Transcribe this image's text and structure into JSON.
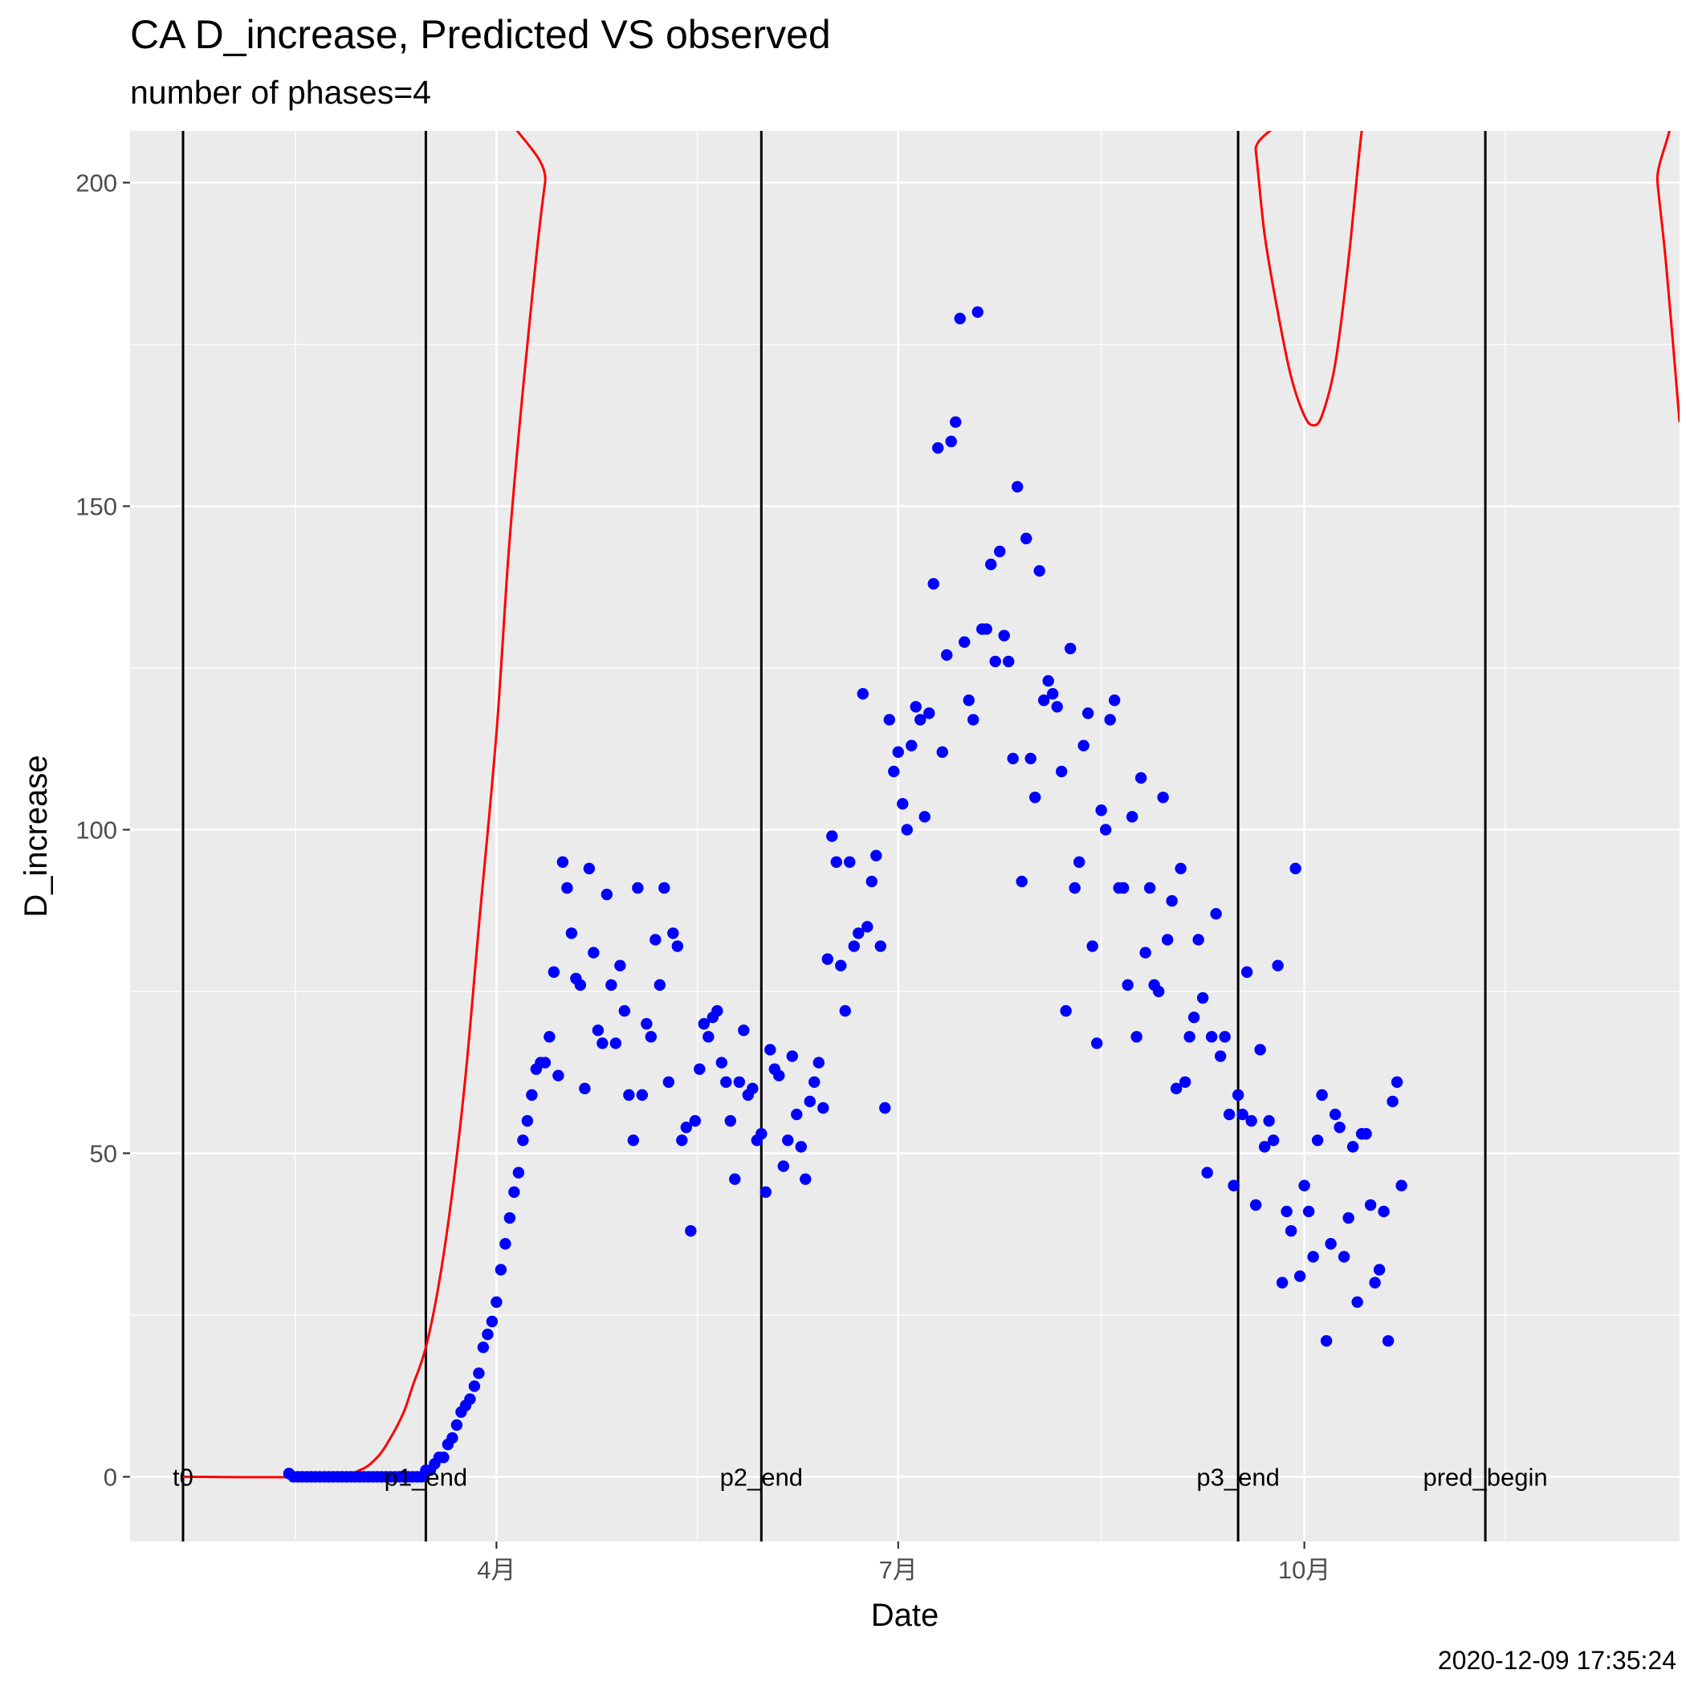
{
  "title": "CA D_increase, Predicted VS observed",
  "subtitle": "number of phases=4",
  "timestamp": "2020-12-09 17:35:24",
  "chart_data": {
    "type": "scatter",
    "xlabel": "Date",
    "ylabel": "D_increase",
    "x_date_range": [
      "2020-01-09",
      "2020-12-25"
    ],
    "ylim": [
      -10,
      208
    ],
    "yticks": [
      0,
      50,
      100,
      150,
      200
    ],
    "xticks": [
      {
        "date": "2020-04-01",
        "label": "4月"
      },
      {
        "date": "2020-07-01",
        "label": "7月"
      },
      {
        "date": "2020-10-01",
        "label": "10月"
      }
    ],
    "grid": true,
    "colors": {
      "panel": "#ebebeb",
      "grid_major": "#ffffff",
      "points": "#0000ff",
      "predicted": "#ff0000",
      "vlines": "#000000"
    },
    "vlines": [
      {
        "date": "2020-01-21",
        "label": "t0"
      },
      {
        "date": "2020-03-16",
        "label": "p1_end"
      },
      {
        "date": "2020-05-31",
        "label": "p2_end"
      },
      {
        "date": "2020-09-16",
        "label": "p3_end"
      },
      {
        "date": "2020-11-11",
        "label": "pred_begin"
      }
    ],
    "observed_series": {
      "start_date": "2020-02-14",
      "values": [
        0.5,
        0,
        0,
        0,
        0,
        0,
        0,
        0,
        0,
        0,
        0,
        0,
        0,
        0,
        0,
        0,
        0,
        0,
        0,
        0,
        0,
        0,
        0,
        0,
        0,
        0,
        0,
        0,
        0,
        0,
        0,
        1,
        1,
        2,
        3,
        3,
        5,
        6,
        8,
        10,
        11,
        12,
        14,
        16,
        20,
        22,
        24,
        27,
        32,
        36,
        40,
        44,
        47,
        52,
        55,
        59,
        63,
        64,
        64,
        68,
        78,
        62,
        95,
        91,
        84,
        77,
        76,
        60,
        94,
        81,
        69,
        67,
        90,
        76,
        67,
        79,
        72,
        59,
        52,
        91,
        59,
        70,
        68,
        83,
        76,
        91,
        61,
        84,
        82,
        52,
        54,
        38,
        55,
        63,
        70,
        68,
        71,
        72,
        64,
        61,
        55,
        46,
        61,
        69,
        59,
        60,
        52,
        53,
        44,
        66,
        63,
        62,
        48,
        52,
        65,
        56,
        51,
        46,
        58,
        61,
        64,
        57,
        80,
        99,
        95,
        79,
        72,
        95,
        82,
        84,
        121,
        85,
        92,
        96,
        82,
        57,
        117,
        109,
        112,
        104,
        100,
        113,
        119,
        117,
        102,
        118,
        138,
        159,
        112,
        127,
        160,
        163,
        179,
        129,
        120,
        117,
        180,
        131,
        131,
        141,
        126,
        143,
        130,
        126,
        111,
        153,
        92,
        145,
        111,
        105,
        140,
        120,
        123,
        121,
        119,
        109,
        72,
        128,
        91,
        95,
        113,
        118,
        82,
        67,
        103,
        100,
        117,
        120,
        91,
        91,
        76,
        102,
        68,
        108,
        81,
        91,
        76,
        75,
        105,
        83,
        89,
        60,
        94,
        61,
        68,
        71,
        83,
        74,
        47,
        68,
        87,
        65,
        68,
        56,
        45,
        59,
        56,
        78,
        55,
        42,
        66,
        51,
        55,
        52,
        79,
        30,
        41,
        38,
        94,
        31,
        45,
        41,
        34,
        52,
        59,
        21,
        36,
        56,
        54,
        34,
        40,
        51,
        27,
        53,
        53,
        42,
        30,
        32,
        41,
        21,
        58,
        61,
        45
      ]
    },
    "predicted_curve": [
      [
        "2020-01-21",
        0
      ],
      [
        "2020-02-23",
        0
      ],
      [
        "2020-03-01",
        1
      ],
      [
        "2020-03-05",
        3
      ],
      [
        "2020-03-08",
        6
      ],
      [
        "2020-03-11",
        10
      ],
      [
        "2020-03-13",
        14
      ],
      [
        "2020-03-16",
        20
      ],
      [
        "2020-03-19",
        30
      ],
      [
        "2020-03-22",
        44
      ],
      [
        "2020-03-25",
        62
      ],
      [
        "2020-03-28",
        85
      ],
      [
        "2020-04-01",
        115
      ],
      [
        "2020-04-04",
        145
      ],
      [
        "2020-04-08",
        175
      ],
      [
        "2020-04-12",
        200
      ],
      [
        "2020-04-16",
        215
      ],
      [
        "2020-09-18",
        215
      ],
      [
        "2020-09-20",
        205
      ],
      [
        "2020-09-22",
        192
      ],
      [
        "2020-09-25",
        180
      ],
      [
        "2020-09-28",
        170
      ],
      [
        "2020-10-01",
        164
      ],
      [
        "2020-10-03",
        162.5
      ],
      [
        "2020-10-05",
        164
      ],
      [
        "2020-10-08",
        172
      ],
      [
        "2020-10-11",
        188
      ],
      [
        "2020-10-14",
        208
      ],
      [
        "2020-10-16",
        215
      ],
      [
        "2020-12-18",
        215
      ],
      [
        "2020-12-20",
        200
      ],
      [
        "2020-12-22",
        187
      ],
      [
        "2020-12-25",
        163
      ]
    ]
  }
}
